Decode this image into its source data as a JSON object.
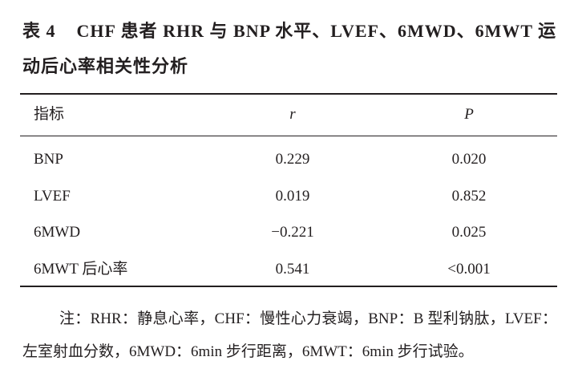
{
  "caption": {
    "label": "表 4",
    "title": "CHF 患者 RHR 与 BNP 水平、LVEF、6MWD、6MWT 运动后心率相关性分析"
  },
  "table": {
    "header": [
      "指标",
      "r",
      "P"
    ],
    "rows": [
      [
        "BNP",
        "0.229",
        "0.020"
      ],
      [
        "LVEF",
        "0.019",
        "0.852"
      ],
      [
        "6MWD",
        "−0.221",
        "0.025"
      ],
      [
        "6MWT 后心率",
        "0.541",
        "<0.001"
      ]
    ]
  },
  "note": "注：RHR：静息心率，CHF：慢性心力衰竭，BNP：B 型利钠肽，LVEF：左室射血分数，6MWD：6min 步行距离，6MWT：6min 步行试验。"
}
